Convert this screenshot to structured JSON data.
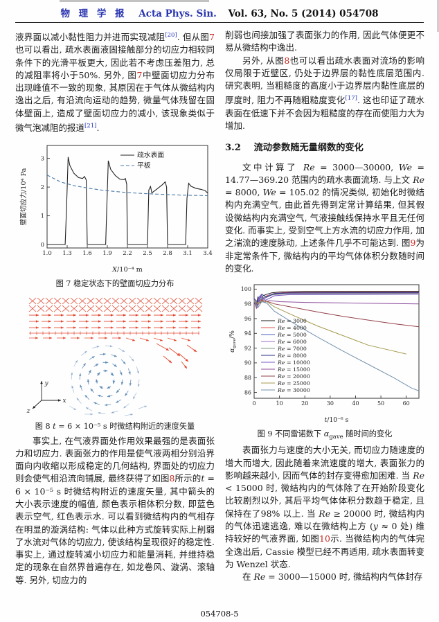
{
  "header": {
    "journal_cn": "物 理 学 报",
    "journal_en": "Acta Phys. Sin.",
    "issue": "Vol. 63, No. 5 (2014)   054708"
  },
  "left_column": {
    "para1": [
      {
        "t": "液界面以减小黏性阻力并进而实现减阻"
      },
      {
        "t": "[20]",
        "c": "cite"
      },
      {
        "t": ". 但从图"
      },
      {
        "t": "7",
        "c": "ref"
      },
      {
        "t": "也可以看出, 疏水表面液固接触部分的切应力相较同条件下的光滑平板更大, 因此若不考虑压差阻力, 总的减阻率将小于50%. 另外, 图"
      },
      {
        "t": "7",
        "c": "ref"
      },
      {
        "t": "中壁面切应力分布出现峰值不一致的现象, 其原因在于气体从微结构内逸出之后, 有沿流向运动的趋势, 微量气体残留在固体壁面上, 造成了壁面切应力的减小, 该现象类似于微气泡减阻的报道"
      },
      {
        "t": "[21]",
        "c": "cite"
      },
      {
        "t": "."
      }
    ],
    "fig7_caption": [
      {
        "t": "图 7   稳定状态下的壁面切应力分布"
      }
    ],
    "fig8": {
      "water_color": "#e03a20",
      "air_color": "#5b87b5",
      "axis_labels": {
        "x": "x",
        "y": "y",
        "z": "z"
      }
    },
    "fig8_caption": [
      {
        "t": "图 8   "
      },
      {
        "t": "t",
        "c": "var"
      },
      {
        "t": " = 6 × 10⁻⁵ s 时微结构附近的速度矢量"
      }
    ],
    "para2": [
      {
        "t": "事实上, 在气液界面处作用效果最强的是表面张力和切应力. 表面张力的作用是使气液两相分别沿界面向内收缩以形成稳定的几何结构, 界面处的切应力则会使气相沿流向铺展, 最终获得了如图"
      },
      {
        "t": "8",
        "c": "ref"
      },
      {
        "t": "所示的"
      },
      {
        "t": "t",
        "c": "var"
      },
      {
        "t": " = 6 × 10⁻⁵ s 时微结构附近的速度矢量, 其中箭头的大小表示速度的幅值, 颜色表示相体积分数, 即蓝色表示空气, 红色表示水. 可以看到微结构内的气相存在明显的漩涡结构: 气体以此种方式旋转实际上削弱了水流对气体的切应力, 使该结构呈现很好的稳定性. 事实上, 通过旋转减小切应力和能量消耗, 并维持稳定的现象在自然界普遍存在, 如龙卷风、漩涡、滚轴等. 另外, 切应力的"
      }
    ]
  },
  "right_column": {
    "para1": [
      {
        "t": "削弱也间接加强了表面张力的作用, 因此气体便更不易从微结构中逸出."
      }
    ],
    "para2": [
      {
        "t": "另外, 从图"
      },
      {
        "t": "8",
        "c": "ref"
      },
      {
        "t": "也可以看出疏水表面对流场的影响仅局限于近壁区, 仍处于边界层的黏性底层范围内. 研究表明, 当粗糙度的高度小于边界层内黏性底层的厚度时, 阻力不再随粗糙度变化"
      },
      {
        "t": "[17]",
        "c": "cite"
      },
      {
        "t": ". 这也印证了疏水表面在低速下并不会因为粗糙度的存在而使阻力大为增加."
      }
    ],
    "section_number": "3.2",
    "section_title": "流动参数随无量纲数的变化",
    "para3": [
      {
        "t": "文中计算了 "
      },
      {
        "t": "Re",
        "c": "var"
      },
      {
        "t": " = 3000—30000, "
      },
      {
        "t": "We",
        "c": "var"
      },
      {
        "t": " = 14.77—369.20 范围内的疏水表面流场. 与上文 "
      },
      {
        "t": "Re",
        "c": "var"
      },
      {
        "t": " = 8000, "
      },
      {
        "t": "We",
        "c": "var"
      },
      {
        "t": " = 105.02 的情况类似, 初始化时微结构内充满空气, 由此首先得到定常计算结果, 但其假设微结构内充满空气, 气液接触线保持水平且无任何变化. 而事实上, 受到空气上方水流的切应力作用, 加之湍流的速度脉动, 上述条件几乎不可能达到. 图"
      },
      {
        "t": "9",
        "c": "ref"
      },
      {
        "t": "为非定常条件下, 微结构内的平均气体体积分数随时间的变化."
      }
    ],
    "fig9_caption": [
      {
        "t": "图 9   不同雷诺数下 "
      },
      {
        "t": "α",
        "c": "var"
      },
      {
        "t": "gave",
        "c": "sub"
      },
      {
        "t": " 随时间的变化"
      }
    ],
    "para4": [
      {
        "t": "表面张力与速度的大小无关, 而切应力随速度的增大而增大, 因此随着来流速度的增大, 表面张力的影响越来越小, 因而气体的封存变得愈加困难. 当 "
      },
      {
        "t": "Re",
        "c": "var"
      },
      {
        "t": " < 15000 时, 微结构内的气体除了在开始阶段变化比较剧烈以外, 其后平均气体体积分数趋于稳定, 且保持在了98% 以上. 当 "
      },
      {
        "t": "Re",
        "c": "var"
      },
      {
        "t": " ≥ 20000 时, 微结构内的气体迅速逃逸, 难以在微结构上方 ("
      },
      {
        "t": "y",
        "c": "var"
      },
      {
        "t": " ≈ 0 处) 维持较好的气液界面, 如图"
      },
      {
        "t": "10",
        "c": "ref"
      },
      {
        "t": "示. 当微结构内的气体完全逸出后, Cassie 模型已经不再适用, 疏水表面转变为 Wenzel 状态."
      }
    ],
    "para5": [
      {
        "t": "在 "
      },
      {
        "t": "Re",
        "c": "var"
      },
      {
        "t": " = 3000—15000 时, 微结构内气体封存"
      }
    ]
  },
  "footer": {
    "page_id": "054708-5"
  },
  "chart_data": [
    {
      "id": "fig7",
      "type": "line",
      "title": "稳定状态下的壁面切应力分布",
      "xlabel": {
        "var": "X",
        "rest": "/10⁻⁴ m"
      },
      "ylabel": {
        "var": "",
        "rest": "壁面切应力/10⁴ Pa"
      },
      "xlim": [
        1.0,
        3.4
      ],
      "ylim": [
        -0.12,
        3.45
      ],
      "xticks": [
        "1.0",
        "1.3",
        "1.6",
        "1.9",
        "2.2",
        "2.5",
        "2.8",
        "3.1",
        "3.4"
      ],
      "yticks": [
        "0",
        "1",
        "2",
        "3"
      ],
      "grid": false,
      "legend_position": "top-right",
      "series": [
        {
          "name": {
            "rest": "疏水表面"
          },
          "color": "#222222",
          "dash": "",
          "points": [
            [
              1.0,
              0
            ],
            [
              1.27,
              0
            ],
            [
              1.29,
              1.2
            ],
            [
              1.315,
              3.05
            ],
            [
              1.34,
              2.75
            ],
            [
              1.4,
              2.48
            ],
            [
              1.47,
              2.33
            ],
            [
              1.53,
              2.3
            ],
            [
              1.56,
              2.37
            ],
            [
              1.585,
              2.25
            ],
            [
              1.6,
              0
            ],
            [
              1.875,
              0
            ],
            [
              1.895,
              1.5
            ],
            [
              1.915,
              2.92
            ],
            [
              1.95,
              2.62
            ],
            [
              2.02,
              2.4
            ],
            [
              2.09,
              2.27
            ],
            [
              2.15,
              2.26
            ],
            [
              2.17,
              2.3
            ],
            [
              2.19,
              2.1
            ],
            [
              2.2,
              0
            ],
            [
              2.5,
              0
            ],
            [
              2.52,
              1.9
            ],
            [
              2.545,
              2.02
            ],
            [
              2.565,
              1.8
            ],
            [
              2.6,
              1.86
            ],
            [
              2.66,
              1.97
            ],
            [
              2.72,
              2.08
            ],
            [
              2.765,
              2.18
            ],
            [
              2.785,
              2.0
            ],
            [
              2.8,
              0
            ],
            [
              3.07,
              0
            ],
            [
              3.09,
              1.6
            ],
            [
              3.115,
              2.13
            ],
            [
              3.15,
              2.03
            ],
            [
              3.22,
              1.96
            ],
            [
              3.3,
              1.92
            ],
            [
              3.36,
              1.88
            ],
            [
              3.4,
              1.79
            ]
          ]
        },
        {
          "name": {
            "rest": "平板"
          },
          "color": "#4a7aa8",
          "dash": "5,3",
          "points": [
            [
              1.0,
              2.42
            ],
            [
              1.2,
              2.18
            ],
            [
              1.4,
              2.05
            ],
            [
              1.6,
              1.97
            ],
            [
              1.8,
              1.9
            ],
            [
              2.0,
              1.85
            ],
            [
              2.2,
              1.81
            ],
            [
              2.4,
              1.78
            ],
            [
              2.6,
              1.76
            ],
            [
              2.8,
              1.74
            ],
            [
              3.0,
              1.72
            ],
            [
              3.2,
              1.71
            ],
            [
              3.4,
              1.7
            ]
          ]
        }
      ]
    },
    {
      "id": "fig9",
      "type": "line",
      "title": "不同雷诺数下 αgave 随时间的变化",
      "xlabel": {
        "var": "t",
        "rest": "/10⁻⁶ s"
      },
      "ylabel": {
        "var": "α",
        "sub": "gave",
        "rest": "/%"
      },
      "xlim": [
        0,
        65
      ],
      "ylim": [
        85.2,
        100.6
      ],
      "xticks": [
        "0",
        "10",
        "20",
        "30",
        "40",
        "50",
        "60"
      ],
      "yticks": [
        "86",
        "88",
        "90",
        "92",
        "94",
        "96",
        "98",
        "100"
      ],
      "grid": false,
      "legend_position": "middle-left",
      "series": [
        {
          "name": {
            "var": "Re",
            "rest": " = 3000"
          },
          "color": "#1c1c1c",
          "dash": "",
          "points": [
            [
              0,
              98.6
            ],
            [
              0.7,
              97.7
            ],
            [
              1.5,
              98.9
            ],
            [
              2.5,
              98.1
            ],
            [
              3.5,
              99.1
            ],
            [
              5,
              99.3
            ],
            [
              7,
              99.5
            ],
            [
              10,
              99.6
            ],
            [
              20,
              99.7
            ],
            [
              65,
              99.7
            ]
          ]
        },
        {
          "name": {
            "var": "Re",
            "rest": " = 4000"
          },
          "color": "#e25050",
          "dash": "",
          "points": [
            [
              0,
              98.4
            ],
            [
              0.8,
              97.5
            ],
            [
              1.8,
              98.8
            ],
            [
              3,
              98.4
            ],
            [
              5,
              99.1
            ],
            [
              8,
              99.4
            ],
            [
              12,
              99.55
            ],
            [
              65,
              99.6
            ]
          ]
        },
        {
          "name": {
            "var": "Re",
            "rest": " = 5000"
          },
          "color": "#4a5fc4",
          "dash": "",
          "points": [
            [
              0,
              98.5
            ],
            [
              1,
              97.9
            ],
            [
              2,
              99.0
            ],
            [
              3.5,
              98.6
            ],
            [
              6,
              99.2
            ],
            [
              10,
              99.45
            ],
            [
              65,
              99.5
            ]
          ]
        },
        {
          "name": {
            "var": "Re",
            "rest": " = 6000"
          },
          "color": "#a06cc8",
          "dash": "",
          "points": [
            [
              0,
              98.6
            ],
            [
              1.2,
              98.0
            ],
            [
              2.5,
              99.2
            ],
            [
              4,
              98.7
            ],
            [
              7,
              99.3
            ],
            [
              12,
              99.4
            ],
            [
              65,
              99.45
            ]
          ]
        },
        {
          "name": {
            "var": "Re",
            "rest": " = 7000"
          },
          "color": "#7c9a7e",
          "dash": "",
          "points": [
            [
              0,
              98.3
            ],
            [
              1,
              97.6
            ],
            [
              2.2,
              98.7
            ],
            [
              4,
              98.9
            ],
            [
              7,
              99.2
            ],
            [
              12,
              99.35
            ],
            [
              65,
              99.4
            ]
          ]
        },
        {
          "name": {
            "var": "Re",
            "rest": " = 8000"
          },
          "color": "#2a2f85",
          "dash": "",
          "points": [
            [
              0,
              98.7
            ],
            [
              1.5,
              98.2
            ],
            [
              3,
              99.3
            ],
            [
              5,
              98.9
            ],
            [
              8,
              99.4
            ],
            [
              14,
              99.5
            ],
            [
              65,
              99.55
            ]
          ]
        },
        {
          "name": {
            "var": "Re",
            "rest": " = 10000"
          },
          "color": "#7a55c8",
          "dash": "",
          "points": [
            [
              0,
              98.5
            ],
            [
              1,
              97.8
            ],
            [
              2.5,
              99.0
            ],
            [
              4.5,
              98.5
            ],
            [
              8,
              99.1
            ],
            [
              14,
              99.25
            ],
            [
              65,
              99.3
            ]
          ]
        },
        {
          "name": {
            "var": "Re",
            "rest": " = 15000"
          },
          "color": "#8f4f9f",
          "dash": "",
          "points": [
            [
              0,
              98.4
            ],
            [
              1,
              97.4
            ],
            [
              2.5,
              98.6
            ],
            [
              4,
              98.2
            ],
            [
              6,
              98.45
            ],
            [
              10,
              98.3
            ],
            [
              20,
              98.2
            ],
            [
              40,
              98.1
            ],
            [
              65,
              98.0
            ]
          ]
        },
        {
          "name": {
            "var": "Re",
            "rest": " = 20000"
          },
          "color": "#93404a",
          "dash": "",
          "points": [
            [
              0,
              98.5
            ],
            [
              1.5,
              97.9
            ],
            [
              3,
              98.5
            ],
            [
              5,
              98.35
            ],
            [
              8,
              98.0
            ],
            [
              15,
              97.55
            ],
            [
              25,
              96.9
            ],
            [
              35,
              96.3
            ],
            [
              45,
              95.8
            ],
            [
              55,
              95.3
            ],
            [
              65,
              94.9
            ]
          ]
        },
        {
          "name": {
            "var": "Re",
            "rest": " = 25000"
          },
          "color": "#a59a4e",
          "dash": "",
          "points": [
            [
              0,
              98.5
            ],
            [
              1.5,
              98.0
            ],
            [
              3,
              98.4
            ],
            [
              5,
              98.3
            ],
            [
              8,
              97.6
            ],
            [
              15,
              96.5
            ],
            [
              25,
              95.0
            ],
            [
              35,
              93.7
            ],
            [
              45,
              92.4
            ],
            [
              55,
              91.6
            ],
            [
              60,
              91.2
            ]
          ]
        },
        {
          "name": {
            "var": "Re",
            "rest": " = 30000"
          },
          "color": "#7392ae",
          "dash": "",
          "points": [
            [
              0,
              98.4
            ],
            [
              1.5,
              97.5
            ],
            [
              3,
              98.3
            ],
            [
              5,
              98.1
            ],
            [
              8,
              97.0
            ],
            [
              15,
              95.5
            ],
            [
              25,
              93.5
            ],
            [
              35,
              91.6
            ],
            [
              45,
              89.8
            ],
            [
              55,
              88.0
            ],
            [
              62,
              86.6
            ],
            [
              65,
              86.2
            ]
          ]
        }
      ]
    }
  ]
}
